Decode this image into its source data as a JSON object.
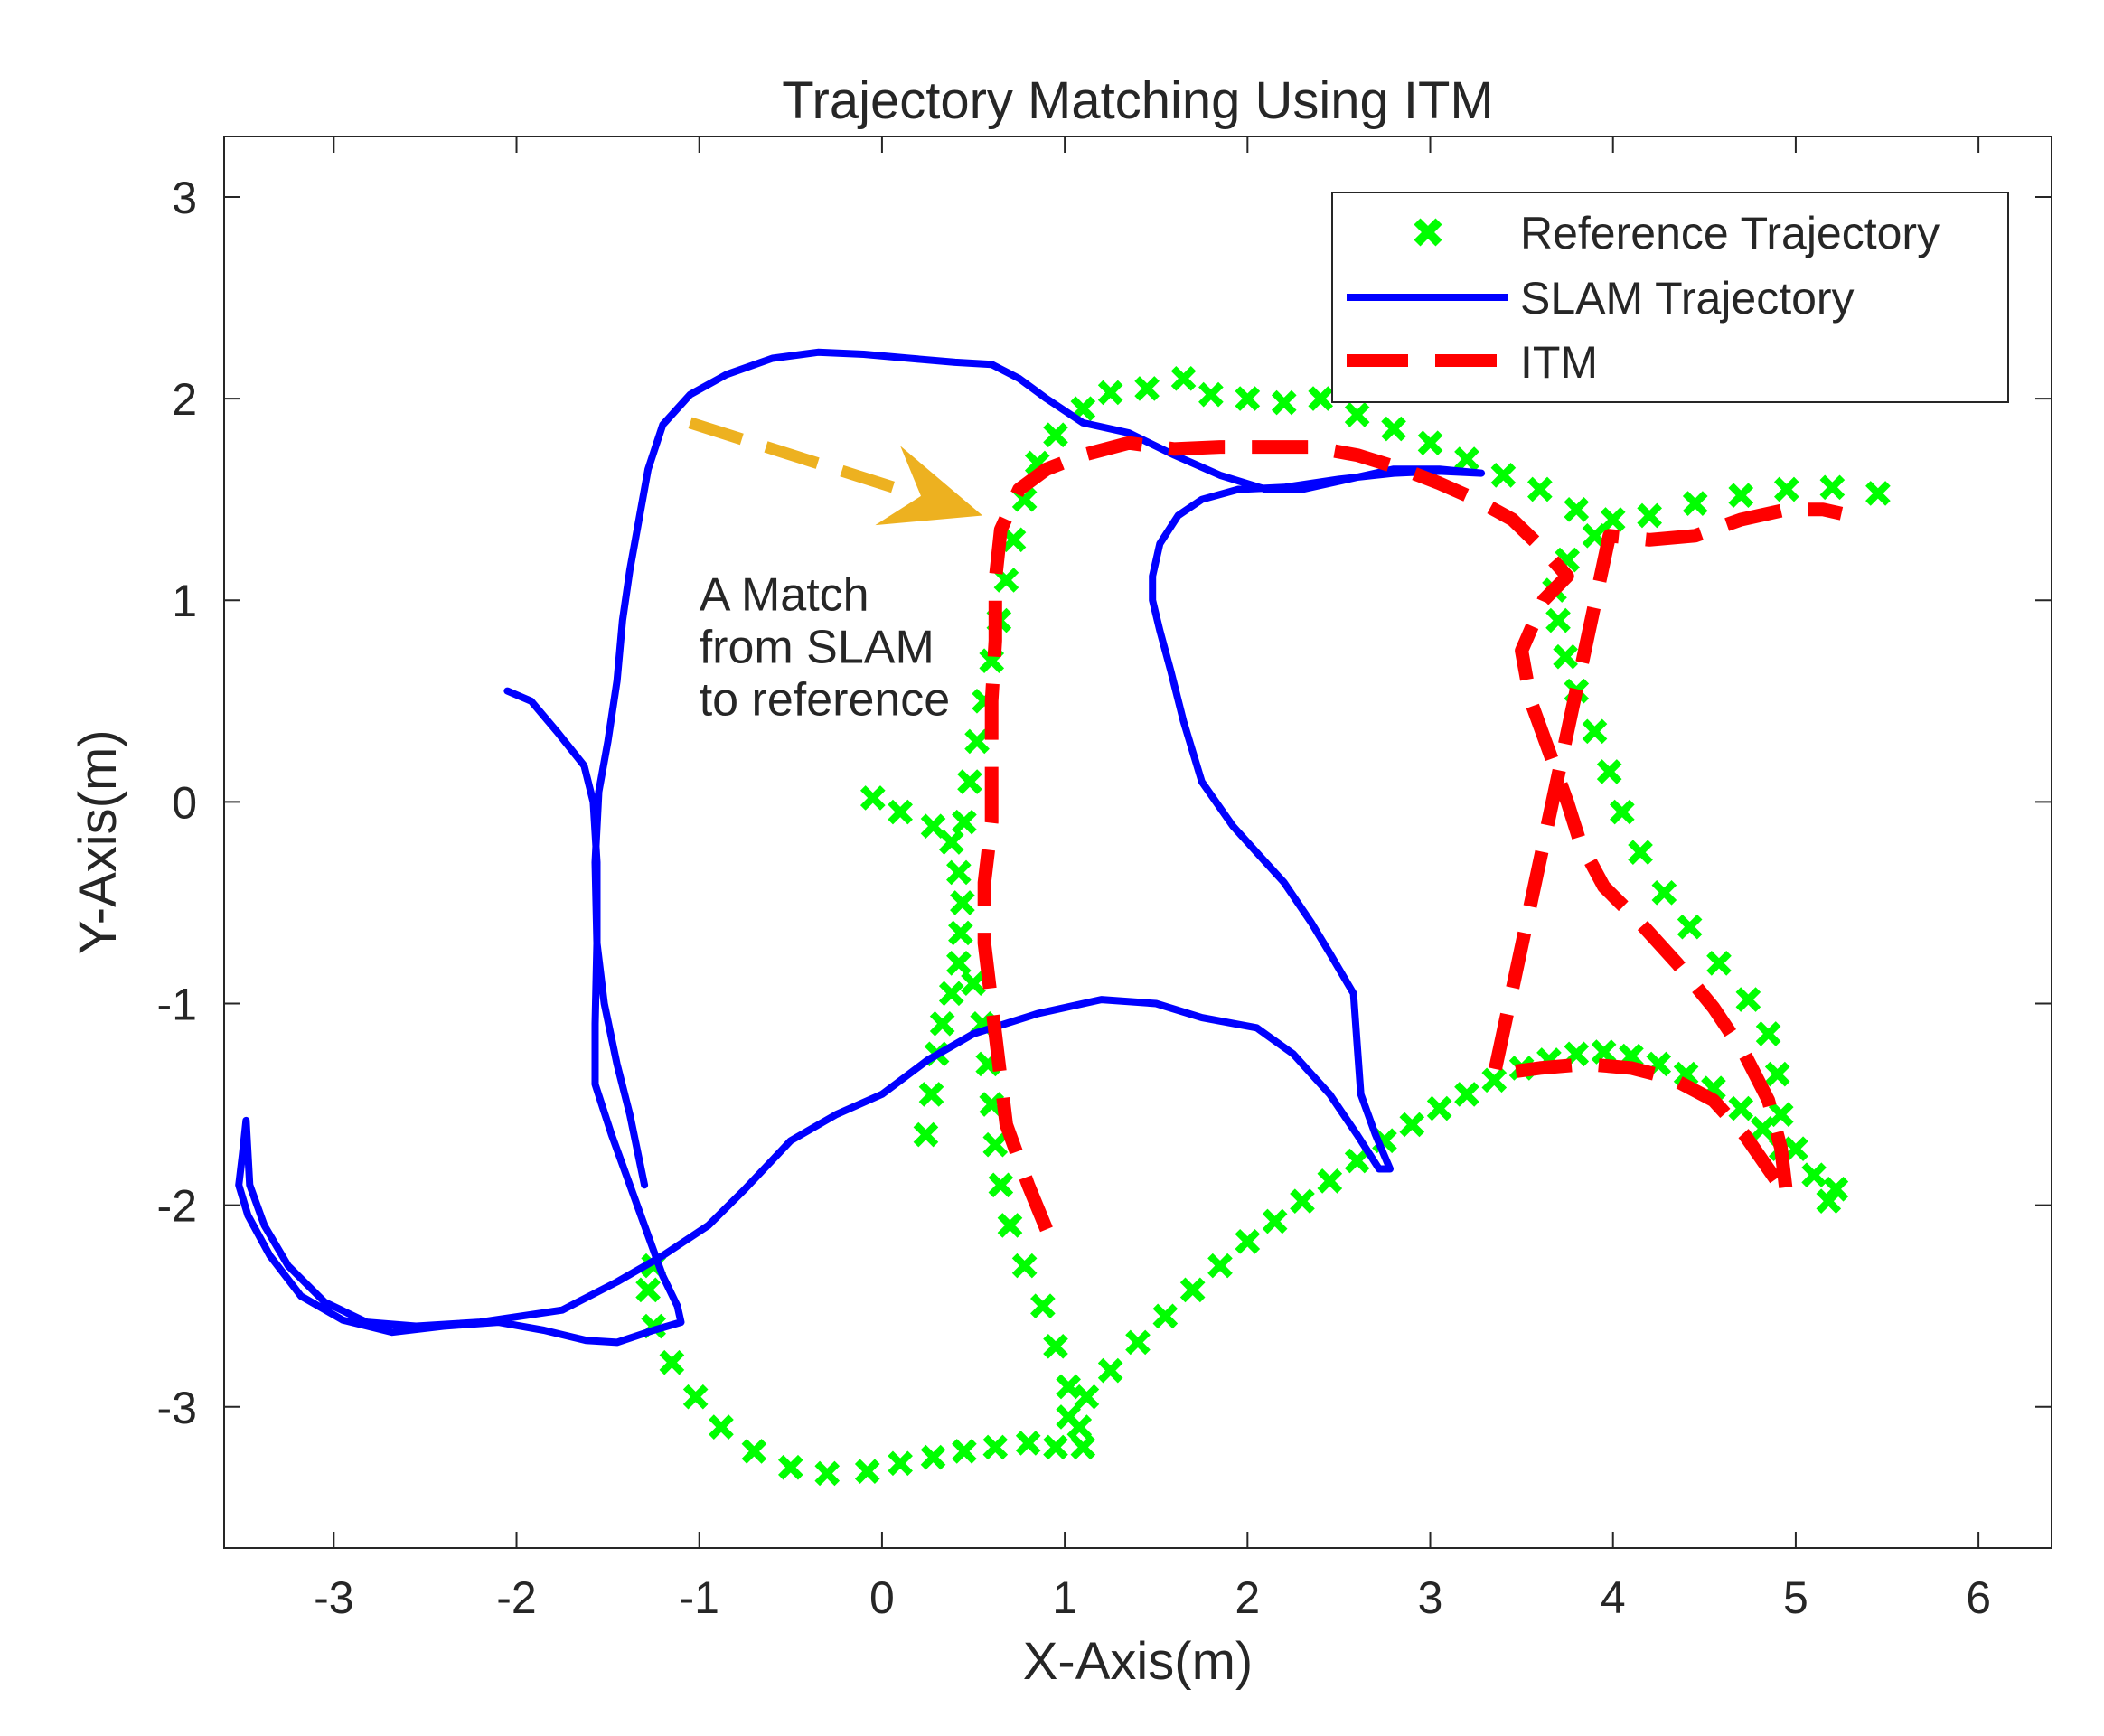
{
  "chart_data": {
    "type": "scatter",
    "title": "Trajectory Matching Using ITM",
    "xlabel": "X-Axis(m)",
    "ylabel": "Y-Axis(m)",
    "xlim": [
      -3.6,
      6.4
    ],
    "ylim": [
      -3.7,
      3.3
    ],
    "xticks": [
      -3,
      -2,
      -1,
      0,
      1,
      2,
      3,
      4,
      5,
      6
    ],
    "yticks": [
      -3,
      -2,
      -1,
      0,
      1,
      2,
      3
    ],
    "grid": false,
    "legend_position": "top-right",
    "annotation": {
      "lines": [
        "A Match",
        "from SLAM",
        "to reference"
      ],
      "anchor": [
        -1.0,
        0.95
      ],
      "arrow_from": [
        -1.05,
        1.88
      ],
      "arrow_to": [
        0.55,
        1.42
      ],
      "color": "#EDB120"
    },
    "series": [
      {
        "name": "Reference Trajectory",
        "style": "markers",
        "marker": "x",
        "color": "#00FF00",
        "points": [
          [
            -0.05,
            0.02
          ],
          [
            0.1,
            -0.05
          ],
          [
            0.28,
            -0.12
          ],
          [
            0.38,
            -0.2
          ],
          [
            0.42,
            -0.35
          ],
          [
            0.44,
            -0.5
          ],
          [
            0.43,
            -0.65
          ],
          [
            0.42,
            -0.8
          ],
          [
            0.38,
            -0.95
          ],
          [
            0.33,
            -1.1
          ],
          [
            0.3,
            -1.25
          ],
          [
            0.27,
            -1.45
          ],
          [
            0.24,
            -1.65
          ],
          [
            0.45,
            -0.1
          ],
          [
            0.48,
            0.1
          ],
          [
            0.52,
            0.3
          ],
          [
            0.56,
            0.5
          ],
          [
            0.6,
            0.7
          ],
          [
            0.64,
            0.9
          ],
          [
            0.68,
            1.1
          ],
          [
            0.72,
            1.3
          ],
          [
            0.78,
            1.5
          ],
          [
            0.85,
            1.68
          ],
          [
            0.95,
            1.82
          ],
          [
            1.1,
            1.95
          ],
          [
            1.25,
            2.03
          ],
          [
            1.45,
            2.05
          ],
          [
            1.65,
            2.1
          ],
          [
            1.8,
            2.02
          ],
          [
            2.0,
            2.0
          ],
          [
            2.2,
            1.98
          ],
          [
            2.4,
            2.0
          ],
          [
            2.6,
            1.92
          ],
          [
            2.8,
            1.85
          ],
          [
            3.0,
            1.78
          ],
          [
            3.2,
            1.7
          ],
          [
            3.4,
            1.62
          ],
          [
            3.6,
            1.55
          ],
          [
            3.8,
            1.45
          ],
          [
            4.0,
            1.4
          ],
          [
            4.2,
            1.42
          ],
          [
            4.45,
            1.48
          ],
          [
            4.7,
            1.52
          ],
          [
            4.95,
            1.55
          ],
          [
            5.2,
            1.56
          ],
          [
            5.45,
            1.53
          ],
          [
            3.9,
            1.32
          ],
          [
            3.75,
            1.2
          ],
          [
            3.68,
            1.05
          ],
          [
            3.7,
            0.9
          ],
          [
            3.74,
            0.72
          ],
          [
            3.8,
            0.55
          ],
          [
            3.9,
            0.35
          ],
          [
            3.98,
            0.15
          ],
          [
            4.05,
            -0.05
          ],
          [
            4.15,
            -0.25
          ],
          [
            4.28,
            -0.45
          ],
          [
            4.42,
            -0.62
          ],
          [
            4.58,
            -0.8
          ],
          [
            4.74,
            -0.98
          ],
          [
            4.85,
            -1.15
          ],
          [
            4.9,
            -1.35
          ],
          [
            4.92,
            -1.55
          ],
          [
            5.0,
            -1.72
          ],
          [
            5.1,
            -1.85
          ],
          [
            5.18,
            -1.98
          ],
          [
            5.22,
            -1.92
          ],
          [
            0.5,
            -0.9
          ],
          [
            0.55,
            -1.1
          ],
          [
            0.58,
            -1.3
          ],
          [
            0.6,
            -1.5
          ],
          [
            0.62,
            -1.7
          ],
          [
            0.65,
            -1.9
          ],
          [
            0.7,
            -2.1
          ],
          [
            0.78,
            -2.3
          ],
          [
            0.88,
            -2.5
          ],
          [
            0.95,
            -2.7
          ],
          [
            1.02,
            -2.9
          ],
          [
            1.08,
            -3.1
          ],
          [
            1.1,
            -3.2
          ],
          [
            0.95,
            -3.2
          ],
          [
            0.8,
            -3.18
          ],
          [
            0.62,
            -3.2
          ],
          [
            0.45,
            -3.22
          ],
          [
            0.28,
            -3.25
          ],
          [
            0.1,
            -3.28
          ],
          [
            -0.08,
            -3.32
          ],
          [
            -0.3,
            -3.33
          ],
          [
            -0.5,
            -3.3
          ],
          [
            -0.7,
            -3.22
          ],
          [
            -0.88,
            -3.1
          ],
          [
            -1.02,
            -2.95
          ],
          [
            -1.15,
            -2.78
          ],
          [
            -1.25,
            -2.6
          ],
          [
            -1.28,
            -2.42
          ],
          [
            -1.25,
            -2.3
          ],
          [
            1.02,
            -3.05
          ],
          [
            1.12,
            -2.95
          ],
          [
            1.25,
            -2.82
          ],
          [
            1.4,
            -2.68
          ],
          [
            1.55,
            -2.55
          ],
          [
            1.7,
            -2.42
          ],
          [
            1.85,
            -2.3
          ],
          [
            2.0,
            -2.18
          ],
          [
            2.15,
            -2.08
          ],
          [
            2.3,
            -1.98
          ],
          [
            2.45,
            -1.88
          ],
          [
            2.6,
            -1.78
          ],
          [
            2.75,
            -1.68
          ],
          [
            2.9,
            -1.6
          ],
          [
            3.05,
            -1.52
          ],
          [
            3.2,
            -1.45
          ],
          [
            3.35,
            -1.38
          ],
          [
            3.5,
            -1.32
          ],
          [
            3.65,
            -1.28
          ],
          [
            3.8,
            -1.25
          ],
          [
            3.95,
            -1.24
          ],
          [
            4.1,
            -1.26
          ],
          [
            4.25,
            -1.3
          ],
          [
            4.4,
            -1.35
          ],
          [
            4.55,
            -1.42
          ],
          [
            4.7,
            -1.52
          ],
          [
            4.82,
            -1.62
          ],
          [
            4.92,
            -1.72
          ]
        ]
      },
      {
        "name": "SLAM Trajectory",
        "style": "line",
        "color": "#0000FF",
        "points": [
          [
            -2.05,
            0.55
          ],
          [
            -1.92,
            0.5
          ],
          [
            -1.78,
            0.35
          ],
          [
            -1.63,
            0.18
          ],
          [
            -1.58,
            0.0
          ],
          [
            -1.56,
            -0.3
          ],
          [
            -1.56,
            -0.7
          ],
          [
            -1.57,
            -1.1
          ],
          [
            -1.57,
            -1.4
          ],
          [
            -1.48,
            -1.65
          ],
          [
            -1.38,
            -1.9
          ],
          [
            -1.28,
            -2.15
          ],
          [
            -1.2,
            -2.35
          ],
          [
            -1.12,
            -2.5
          ],
          [
            -1.1,
            -2.58
          ],
          [
            -1.25,
            -2.62
          ],
          [
            -1.45,
            -2.68
          ],
          [
            -1.62,
            -2.67
          ],
          [
            -1.85,
            -2.62
          ],
          [
            -2.1,
            -2.58
          ],
          [
            -2.4,
            -2.6
          ],
          [
            -2.68,
            -2.63
          ],
          [
            -2.95,
            -2.57
          ],
          [
            -3.18,
            -2.45
          ],
          [
            -3.35,
            -2.25
          ],
          [
            -3.47,
            -2.05
          ],
          [
            -3.52,
            -1.9
          ],
          [
            -3.5,
            -1.75
          ],
          [
            -3.48,
            -1.58
          ],
          [
            -3.46,
            -1.9
          ],
          [
            -3.38,
            -2.1
          ],
          [
            -3.25,
            -2.3
          ],
          [
            -3.05,
            -2.48
          ],
          [
            -2.82,
            -2.58
          ],
          [
            -2.55,
            -2.6
          ],
          [
            -2.2,
            -2.58
          ],
          [
            -1.75,
            -2.52
          ],
          [
            -1.45,
            -2.38
          ],
          [
            -1.2,
            -2.25
          ],
          [
            -0.95,
            -2.1
          ],
          [
            -0.75,
            -1.92
          ],
          [
            -0.5,
            -1.68
          ],
          [
            -0.25,
            -1.55
          ],
          [
            0.0,
            -1.45
          ],
          [
            0.25,
            -1.28
          ],
          [
            0.5,
            -1.15
          ],
          [
            0.85,
            -1.05
          ],
          [
            1.2,
            -0.98
          ],
          [
            1.5,
            -1.0
          ],
          [
            1.75,
            -1.07
          ],
          [
            2.05,
            -1.12
          ],
          [
            2.25,
            -1.25
          ],
          [
            2.45,
            -1.45
          ],
          [
            2.6,
            -1.65
          ],
          [
            2.72,
            -1.82
          ],
          [
            2.78,
            -1.82
          ],
          [
            2.7,
            -1.65
          ],
          [
            2.62,
            -1.45
          ],
          [
            2.6,
            -1.2
          ],
          [
            2.58,
            -0.95
          ],
          [
            2.45,
            -0.75
          ],
          [
            2.35,
            -0.6
          ],
          [
            2.2,
            -0.4
          ],
          [
            2.05,
            -0.25
          ],
          [
            1.92,
            -0.12
          ],
          [
            1.75,
            0.1
          ],
          [
            1.65,
            0.4
          ],
          [
            1.58,
            0.65
          ],
          [
            1.52,
            0.85
          ],
          [
            1.48,
            1.0
          ],
          [
            1.48,
            1.12
          ],
          [
            1.52,
            1.28
          ],
          [
            1.62,
            1.42
          ],
          [
            1.75,
            1.5
          ],
          [
            1.95,
            1.55
          ],
          [
            2.2,
            1.56
          ],
          [
            2.5,
            1.6
          ],
          [
            2.8,
            1.63
          ],
          [
            3.05,
            1.64
          ],
          [
            3.28,
            1.63
          ],
          [
            3.05,
            1.65
          ],
          [
            2.8,
            1.65
          ],
          [
            2.55,
            1.6
          ],
          [
            2.3,
            1.55
          ],
          [
            2.1,
            1.55
          ],
          [
            1.85,
            1.62
          ],
          [
            1.6,
            1.72
          ],
          [
            1.35,
            1.83
          ],
          [
            1.1,
            1.88
          ],
          [
            0.9,
            2.0
          ],
          [
            0.75,
            2.1
          ],
          [
            0.6,
            2.17
          ],
          [
            0.4,
            2.18
          ],
          [
            0.15,
            2.2
          ],
          [
            -0.1,
            2.22
          ],
          [
            -0.35,
            2.23
          ],
          [
            -0.6,
            2.2
          ],
          [
            -0.85,
            2.12
          ],
          [
            -1.05,
            2.02
          ],
          [
            -1.2,
            1.87
          ],
          [
            -1.28,
            1.65
          ],
          [
            -1.33,
            1.4
          ],
          [
            -1.38,
            1.15
          ],
          [
            -1.42,
            0.9
          ],
          [
            -1.45,
            0.6
          ],
          [
            -1.5,
            0.3
          ],
          [
            -1.55,
            0.05
          ],
          [
            -1.57,
            -0.3
          ],
          [
            -1.56,
            -0.7
          ],
          [
            -1.52,
            -1.0
          ],
          [
            -1.45,
            -1.3
          ],
          [
            -1.38,
            -1.55
          ],
          [
            -1.3,
            -1.9
          ]
        ]
      },
      {
        "name": "ITM",
        "style": "dashed-line",
        "color": "#FF0000",
        "points": [
          [
            0.9,
            -2.12
          ],
          [
            0.8,
            -1.9
          ],
          [
            0.68,
            -1.6
          ],
          [
            0.64,
            -1.3
          ],
          [
            0.6,
            -1.0
          ],
          [
            0.56,
            -0.7
          ],
          [
            0.56,
            -0.4
          ],
          [
            0.6,
            -0.1
          ],
          [
            0.6,
            0.2
          ],
          [
            0.6,
            0.5
          ],
          [
            0.62,
            0.8
          ],
          [
            0.62,
            1.1
          ],
          [
            0.65,
            1.35
          ],
          [
            0.75,
            1.55
          ],
          [
            0.9,
            1.65
          ],
          [
            1.1,
            1.72
          ],
          [
            1.35,
            1.78
          ],
          [
            1.6,
            1.75
          ],
          [
            1.85,
            1.76
          ],
          [
            2.1,
            1.76
          ],
          [
            2.35,
            1.76
          ],
          [
            2.6,
            1.72
          ],
          [
            2.85,
            1.65
          ],
          [
            3.05,
            1.58
          ],
          [
            3.25,
            1.5
          ],
          [
            3.45,
            1.4
          ],
          [
            3.62,
            1.25
          ],
          [
            3.75,
            1.12
          ],
          [
            3.62,
            1.0
          ],
          [
            3.5,
            0.75
          ],
          [
            3.55,
            0.5
          ],
          [
            3.65,
            0.25
          ],
          [
            3.75,
            0.0
          ],
          [
            3.82,
            -0.2
          ],
          [
            3.95,
            -0.42
          ],
          [
            4.15,
            -0.6
          ],
          [
            4.35,
            -0.8
          ],
          [
            4.55,
            -1.02
          ],
          [
            4.72,
            -1.25
          ],
          [
            4.85,
            -1.48
          ],
          [
            4.92,
            -1.72
          ],
          [
            4.95,
            -1.95
          ],
          [
            4.85,
            -1.82
          ],
          [
            4.72,
            -1.65
          ],
          [
            4.55,
            -1.48
          ],
          [
            4.32,
            -1.37
          ],
          [
            4.1,
            -1.32
          ],
          [
            3.85,
            -1.3
          ],
          [
            3.6,
            -1.32
          ],
          [
            3.35,
            -1.35
          ],
          [
            3.98,
            1.32
          ],
          [
            4.2,
            1.3
          ],
          [
            4.45,
            1.32
          ],
          [
            4.7,
            1.4
          ],
          [
            4.95,
            1.45
          ],
          [
            5.15,
            1.45
          ],
          [
            5.25,
            1.43
          ]
        ]
      }
    ]
  }
}
